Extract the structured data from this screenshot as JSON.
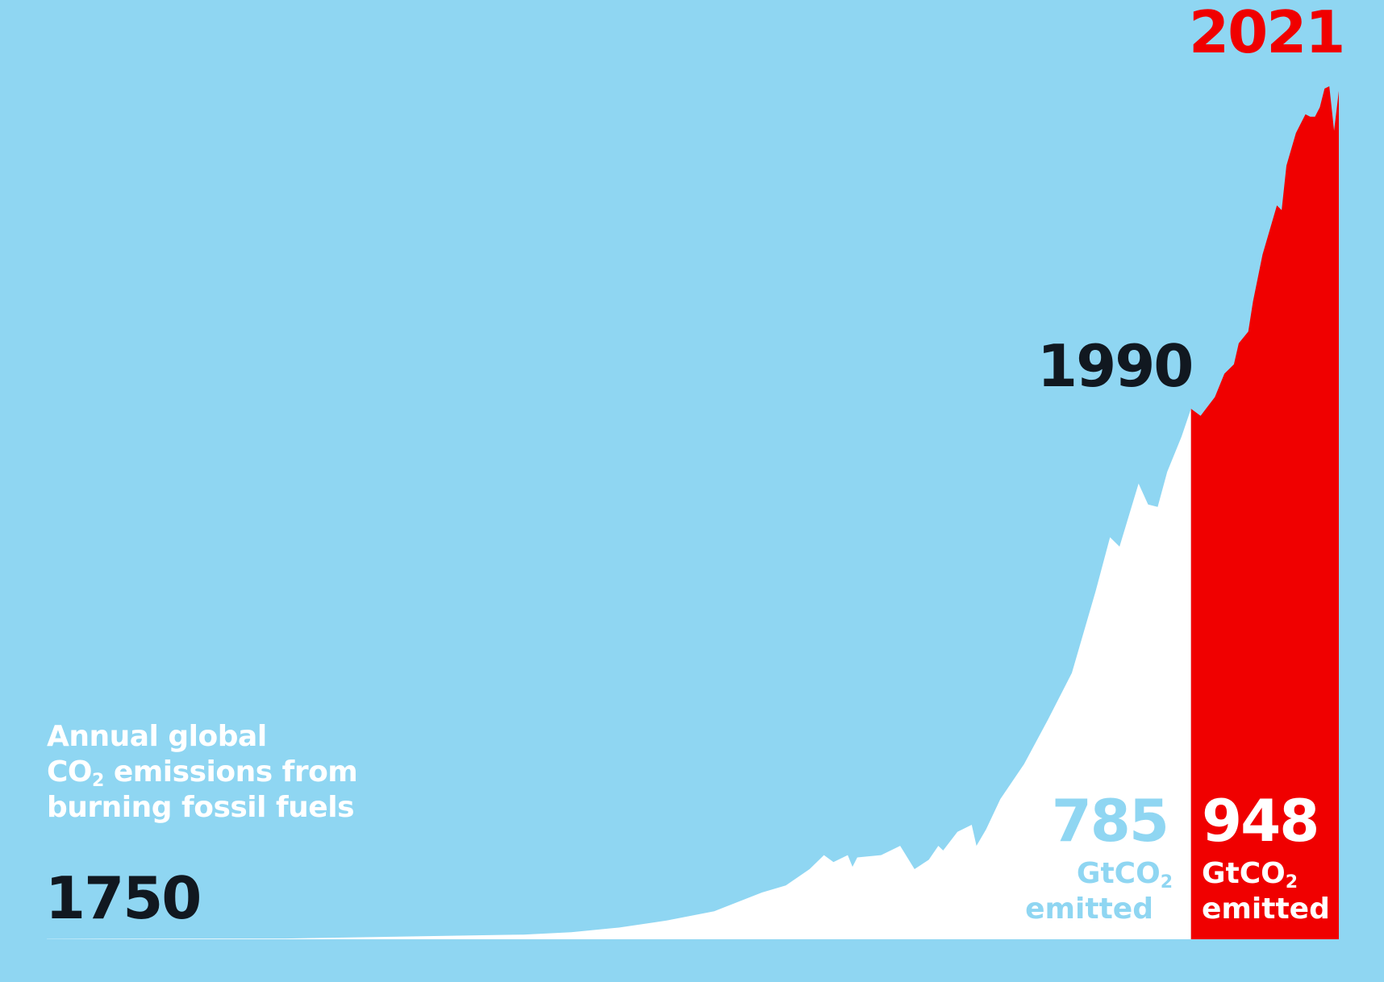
{
  "colors": {
    "background": "#8fd6f2",
    "before_1990": "#ffffff",
    "since_1990": "#f00000",
    "dark_text": "#111820",
    "red_text": "#f00000",
    "light_text": "#8fd6f2"
  },
  "title": {
    "line1": "Annual global",
    "line2_prefix": "CO",
    "line2_sub": "2",
    "line2_suffix": " emissions from",
    "line3": "burning fossil fuels"
  },
  "labels": {
    "start_year": "1750",
    "mid_year": "1990",
    "end_year": "2021"
  },
  "totals": {
    "before": {
      "value": "785",
      "unit_prefix": "GtCO",
      "unit_sub": "2",
      "unit_line2": "emitted"
    },
    "since": {
      "value": "948",
      "unit_prefix": "GtCO",
      "unit_sub": "2",
      "unit_line2": "emitted"
    }
  },
  "chart_data": {
    "type": "area",
    "x_range": [
      1750,
      2021
    ],
    "y_range": [
      0,
      37.5
    ],
    "split_year": 1990,
    "series": [
      {
        "values_note": "",
        "points": [
          [
            1750,
            0.01
          ],
          [
            1800,
            0.03
          ],
          [
            1850,
            0.2
          ],
          [
            1860,
            0.3
          ],
          [
            1870,
            0.5
          ],
          [
            1880,
            0.8
          ],
          [
            1890,
            1.2
          ],
          [
            1900,
            2.0
          ],
          [
            1905,
            2.3
          ],
          [
            1910,
            3.0
          ],
          [
            1913,
            3.6
          ],
          [
            1915,
            3.3
          ],
          [
            1918,
            3.6
          ],
          [
            1919,
            3.1
          ],
          [
            1920,
            3.5
          ],
          [
            1925,
            3.6
          ],
          [
            1929,
            4.0
          ],
          [
            1932,
            3.0
          ],
          [
            1935,
            3.4
          ],
          [
            1937,
            4.0
          ],
          [
            1938,
            3.8
          ],
          [
            1941,
            4.6
          ],
          [
            1944,
            4.9
          ],
          [
            1945,
            4.0
          ],
          [
            1947,
            4.7
          ],
          [
            1950,
            6.0
          ],
          [
            1955,
            7.5
          ],
          [
            1960,
            9.4
          ],
          [
            1965,
            11.4
          ],
          [
            1970,
            14.9
          ],
          [
            1973,
            17.2
          ],
          [
            1975,
            16.8
          ],
          [
            1979,
            19.5
          ],
          [
            1981,
            18.6
          ],
          [
            1983,
            18.5
          ],
          [
            1985,
            20.0
          ],
          [
            1988,
            21.5
          ],
          [
            1990,
            22.7
          ],
          [
            1992,
            22.4
          ],
          [
            1995,
            23.2
          ],
          [
            1997,
            24.2
          ],
          [
            1999,
            24.6
          ],
          [
            2000,
            25.5
          ],
          [
            2002,
            26.0
          ],
          [
            2003,
            27.3
          ],
          [
            2005,
            29.3
          ],
          [
            2008,
            31.4
          ],
          [
            2009,
            31.2
          ],
          [
            2010,
            33.1
          ],
          [
            2012,
            34.5
          ],
          [
            2014,
            35.3
          ],
          [
            2015,
            35.2
          ],
          [
            2016,
            35.2
          ],
          [
            2017,
            35.6
          ],
          [
            2018,
            36.4
          ],
          [
            2019,
            36.5
          ],
          [
            2020,
            34.6
          ],
          [
            2021,
            36.3
          ]
        ]
      }
    ]
  }
}
